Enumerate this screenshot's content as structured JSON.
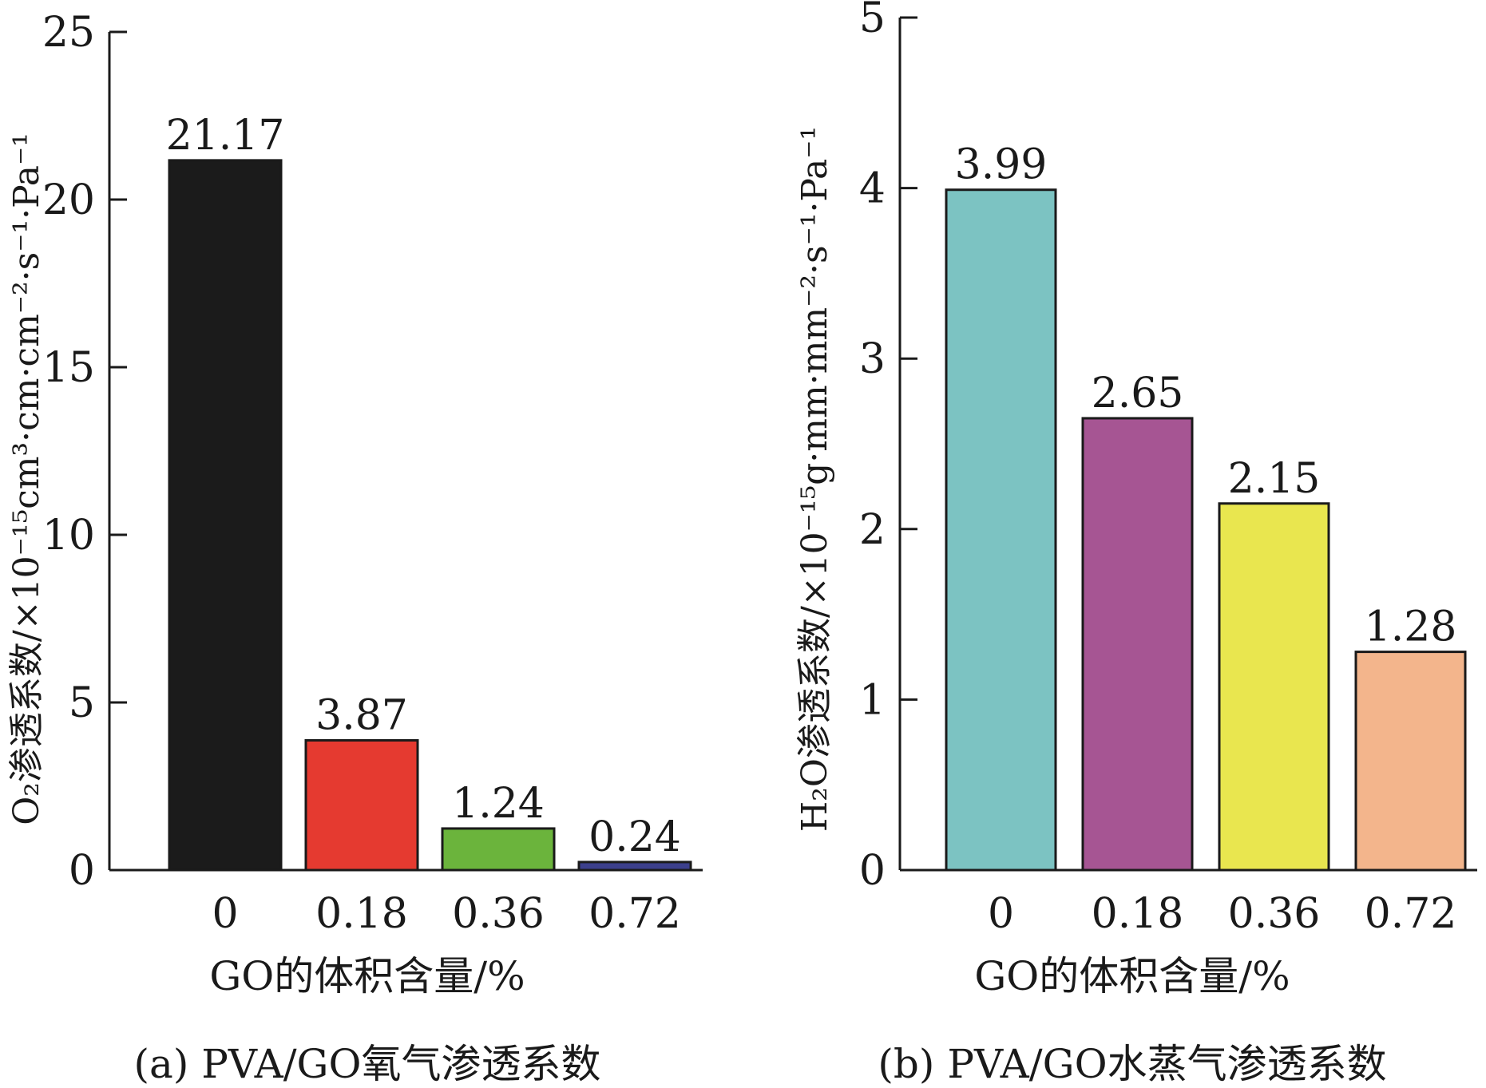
{
  "chart_data": [
    {
      "id": "a",
      "type": "bar",
      "categories": [
        "0",
        "0.18",
        "0.36",
        "0.72"
      ],
      "values": [
        21.17,
        3.87,
        1.24,
        0.24
      ],
      "value_labels": [
        "21.17",
        "3.87",
        "1.24",
        "0.24"
      ],
      "colors": [
        "#1b1b1b",
        "#e53a30",
        "#6bb43c",
        "#3c3f8c"
      ],
      "ylim": [
        0,
        25
      ],
      "yticks": [
        0,
        5,
        10,
        15,
        20,
        25
      ],
      "ylabel": "O₂渗透系数/×10⁻¹⁵cm³·cm·cm⁻²·s⁻¹·Pa⁻¹",
      "xlabel": "GO的体积含量/%",
      "caption": "(a) PVA/GO氧气渗透系数",
      "grid": false
    },
    {
      "id": "b",
      "type": "bar",
      "categories": [
        "0",
        "0.18",
        "0.36",
        "0.72"
      ],
      "values": [
        3.99,
        2.65,
        2.15,
        1.28
      ],
      "value_labels": [
        "3.99",
        "2.65",
        "2.15",
        "1.28"
      ],
      "colors": [
        "#7cc3c2",
        "#a65593",
        "#e9e64f",
        "#f3b58c"
      ],
      "ylim": [
        0,
        5
      ],
      "yticks": [
        0,
        1,
        2,
        3,
        4,
        5
      ],
      "ylabel": "H₂O渗透系数/×10⁻¹⁵g·mm·mm⁻²·s⁻¹·Pa⁻¹",
      "xlabel": "GO的体积含量/%",
      "caption": "(b) PVA/GO水蒸气渗透系数",
      "grid": false
    }
  ]
}
